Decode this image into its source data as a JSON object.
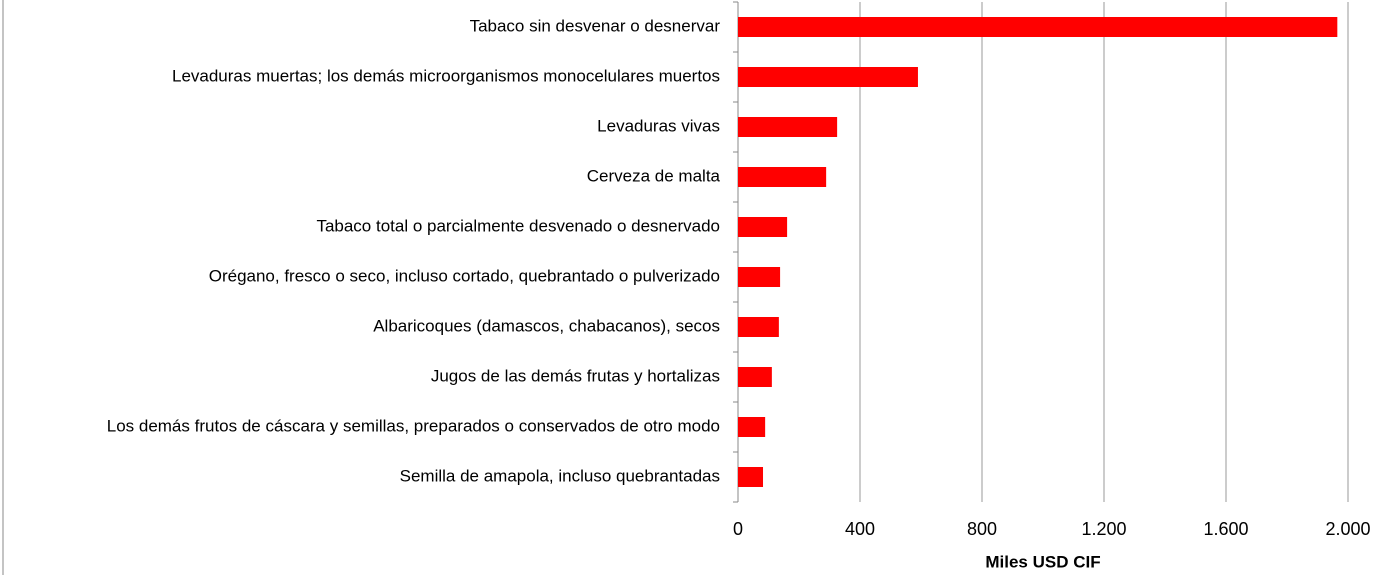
{
  "chart_data": {
    "type": "bar",
    "orientation": "horizontal",
    "x_label": "Miles USD CIF",
    "categories": [
      "Tabaco sin desvenar o desnervar",
      "Levaduras muertas; los demás microorganismos monocelulares muertos",
      "Levaduras vivas",
      "Cerveza de malta",
      "Tabaco total o parcialmente desvenado o desnervado",
      "Orégano, fresco o seco, incluso cortado, quebrantado o pulverizado",
      "Albaricoques (damascos, chabacanos), secos",
      "Jugos de las demás frutas y hortalizas",
      "Los demás frutos de cáscara y semillas, preparados o conservados de otro modo",
      "Semilla de amapola, incluso quebrantadas"
    ],
    "values": [
      1965,
      590,
      325,
      289,
      161,
      138,
      134,
      111,
      89,
      82
    ],
    "color": "#ff0000",
    "xlim": [
      0,
      2000
    ],
    "xticks": [
      0,
      400,
      800,
      {
        "value": 1200,
        "label": "1.200"
      },
      {
        "value": 1600,
        "label": "1.600"
      },
      {
        "value": 2000,
        "label": "2.000"
      }
    ],
    "grid": true
  }
}
